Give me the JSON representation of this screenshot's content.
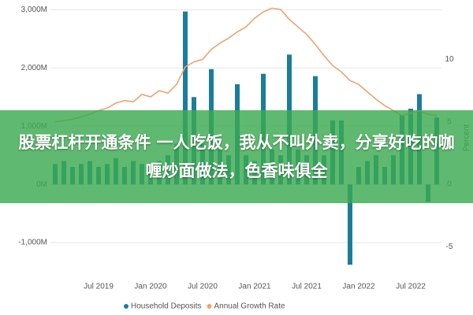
{
  "chart_data": {
    "type": "bar",
    "categories": [
      null,
      null,
      null,
      null,
      null,
      "Jul 2019",
      null,
      null,
      null,
      null,
      null,
      "Jan 2020",
      null,
      null,
      null,
      null,
      null,
      "Jul 2020",
      null,
      null,
      null,
      null,
      null,
      "Jan 2021",
      null,
      null,
      null,
      null,
      null,
      "Jul 2021",
      null,
      null,
      null,
      null,
      null,
      "Jan 2022",
      null,
      null,
      null,
      null,
      null,
      "Jul 2022",
      null,
      null,
      null
    ],
    "series": [
      {
        "name": "Household Deposits",
        "color": "#1b7d9a",
        "values": [
          350,
          400,
          300,
          350,
          400,
          300,
          350,
          450,
          300,
          400,
          350,
          300,
          400,
          500,
          700,
          2970,
          1500,
          700,
          1980,
          600,
          500,
          1720,
          500,
          400,
          1900,
          600,
          500,
          2230,
          600,
          500,
          1860,
          500,
          1100,
          1100,
          -1380,
          300,
          400,
          500,
          300,
          500,
          1200,
          1300,
          1550,
          -300,
          1150
        ]
      },
      {
        "name": "Annual Growth Rate",
        "color": "#f0a36c",
        "axis": "y2",
        "values": [
          5.0,
          5.1,
          5.2,
          5.4,
          5.6,
          5.9,
          6.1,
          6.5,
          6.7,
          6.6,
          7.2,
          7.0,
          7.5,
          7.3,
          8.0,
          9.4,
          9.8,
          10.0,
          10.8,
          11.3,
          11.7,
          12.2,
          12.6,
          13.3,
          13.8,
          14.1,
          14.0,
          13.2,
          12.6,
          12.0,
          11.2,
          10.3,
          9.5,
          9.0,
          8.3,
          8.0,
          7.4,
          6.8,
          6.3,
          5.9,
          5.5,
          5.7,
          5.9,
          5.6,
          5.5
        ]
      }
    ],
    "ylim": [
      -1500,
      3100
    ],
    "yticks": [
      {
        "value": -1000,
        "label": "-1,000M"
      },
      {
        "value": 0,
        "label": "0M"
      },
      {
        "value": 1000,
        "label": "1,000M"
      },
      {
        "value": 2000,
        "label": "2,000M"
      },
      {
        "value": 3000,
        "label": "3,000M"
      }
    ],
    "y2lim": [
      -7,
      14.44
    ],
    "y2ticks": [
      -5,
      0,
      5,
      10
    ],
    "y2_label": "Percent",
    "grid": true
  },
  "banner": {
    "text": "股票杠杆开通条件 一人吃饭，我从不叫外卖，分享好吃的咖喱炒面做法，色香味俱全"
  }
}
